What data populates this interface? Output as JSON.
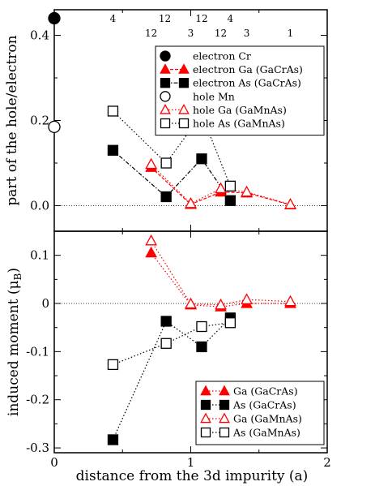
{
  "chart_data": [
    {
      "type": "scatter",
      "panel": "top",
      "ylabel": "part of the hole/electron",
      "xlabel": "",
      "xlim": [
        0,
        2
      ],
      "ylim": [
        -0.06,
        0.46
      ],
      "yticks": [
        0.0,
        0.2,
        0.4
      ],
      "ytick_labels": [
        "0.0",
        "0.2",
        "0.4"
      ],
      "grid": false,
      "legend_position": "top-right",
      "shell_labels": [
        {
          "x": 0.43,
          "text": "4",
          "row": 1
        },
        {
          "x": 0.71,
          "text": "12",
          "row": 2
        },
        {
          "x": 0.81,
          "text": "12",
          "row": 1
        },
        {
          "x": 1.0,
          "text": "3",
          "row": 2
        },
        {
          "x": 1.08,
          "text": "12",
          "row": 1
        },
        {
          "x": 1.22,
          "text": "12",
          "row": 2
        },
        {
          "x": 1.29,
          "text": "4",
          "row": 1
        },
        {
          "x": 1.41,
          "text": "3",
          "row": 2
        },
        {
          "x": 1.73,
          "text": "1",
          "row": 2
        }
      ],
      "series": [
        {
          "name": "electron Cr",
          "marker": "circle",
          "filled": true,
          "color": "#000000",
          "line": "none",
          "x": [
            0
          ],
          "y": [
            0.44
          ]
        },
        {
          "name": "electron Ga (GaCrAs)",
          "marker": "triangle",
          "filled": true,
          "color": "#ff0000",
          "line": "dashed",
          "x": [
            0.71,
            1.0,
            1.22,
            1.41,
            1.73
          ],
          "y": [
            0.09,
            0.003,
            0.032,
            0.03,
            0.002
          ]
        },
        {
          "name": "electron As (GaCrAs)",
          "marker": "square",
          "filled": true,
          "color": "#000000",
          "line": "dash-dot",
          "x": [
            0.43,
            0.82,
            1.08,
            1.29
          ],
          "y": [
            0.13,
            0.021,
            0.11,
            0.012
          ]
        },
        {
          "name": "hole Mn",
          "marker": "circle",
          "filled": false,
          "color": "#000000",
          "line": "none",
          "x": [
            0
          ],
          "y": [
            0.185
          ]
        },
        {
          "name": "hole Ga (GaMnAs)",
          "marker": "triangle",
          "filled": false,
          "color": "#ff0000",
          "line": "dotted",
          "x": [
            0.71,
            1.0,
            1.22,
            1.41,
            1.73
          ],
          "y": [
            0.097,
            0.005,
            0.04,
            0.032,
            0.003
          ]
        },
        {
          "name": "hole As (GaMnAs)",
          "marker": "square",
          "filled": false,
          "color": "#000000",
          "line": "dotted",
          "x": [
            0.43,
            0.82,
            1.08,
            1.29
          ],
          "y": [
            0.222,
            0.1,
            0.214,
            0.046
          ]
        }
      ]
    },
    {
      "type": "scatter",
      "panel": "bottom",
      "ylabel": "induced moment  (μ",
      "ylabel_sub": "B",
      "ylabel_end": ")",
      "xlabel": "distance from the 3d impurity (a)",
      "xlim": [
        0,
        2
      ],
      "ylim": [
        -0.31,
        0.15
      ],
      "xticks": [
        0,
        1,
        2
      ],
      "xtick_labels": [
        "0",
        "1",
        "2"
      ],
      "yticks": [
        -0.3,
        -0.2,
        -0.1,
        0,
        0.1
      ],
      "ytick_labels": [
        "-0.3",
        "-0.2",
        "-0.1",
        "0",
        "0.1"
      ],
      "grid": false,
      "legend_position": "bottom-right",
      "series": [
        {
          "name": "Ga (GaCrAs)",
          "marker": "triangle",
          "filled": true,
          "color": "#ff0000",
          "line": "dotted",
          "x": [
            0.71,
            1.0,
            1.22,
            1.41,
            1.73
          ],
          "y": [
            0.105,
            -0.003,
            -0.007,
            0.0,
            0.0
          ]
        },
        {
          "name": "As (GaCrAs)",
          "marker": "square",
          "filled": true,
          "color": "#000000",
          "line": "dotted",
          "x": [
            0.43,
            0.82,
            1.08,
            1.29
          ],
          "y": [
            -0.283,
            -0.037,
            -0.09,
            -0.03
          ]
        },
        {
          "name": "Ga (GaMnAs)",
          "marker": "triangle",
          "filled": false,
          "color": "#ff0000",
          "line": "dotted",
          "x": [
            0.71,
            1.0,
            1.22,
            1.41,
            1.73
          ],
          "y": [
            0.13,
            -0.001,
            -0.003,
            0.008,
            0.004
          ]
        },
        {
          "name": "As (GaMnAs)",
          "marker": "square",
          "filled": false,
          "color": "#000000",
          "line": "dotted",
          "x": [
            0.43,
            0.82,
            1.08,
            1.29
          ],
          "y": [
            -0.127,
            -0.083,
            -0.048,
            -0.04
          ]
        }
      ]
    }
  ]
}
